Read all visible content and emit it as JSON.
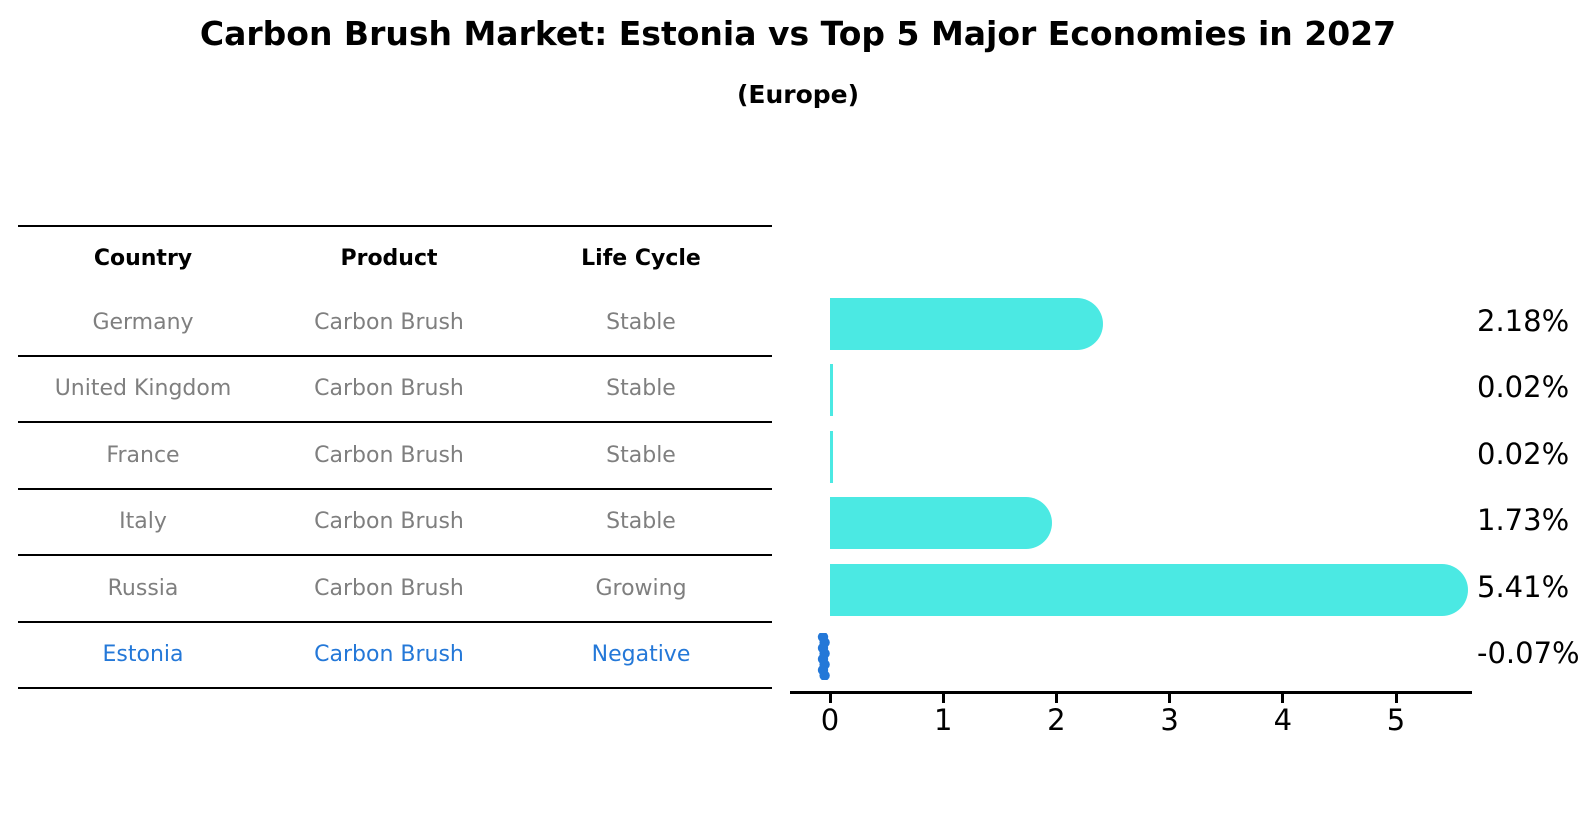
{
  "title": "Carbon Brush Market: Estonia vs Top 5 Major Economies in 2027",
  "subtitle": "(Europe)",
  "colors": {
    "bar": "#4BE9E3",
    "highlight": "#2478D8",
    "row_text": "#7f7f7f",
    "header_text": "#000000"
  },
  "table": {
    "headers": [
      "Country",
      "Product",
      "Life Cycle"
    ],
    "rows": [
      {
        "country": "Germany",
        "product": "Carbon Brush",
        "life_cycle": "Stable",
        "highlight": false
      },
      {
        "country": "United Kingdom",
        "product": "Carbon Brush",
        "life_cycle": "Stable",
        "highlight": false
      },
      {
        "country": "France",
        "product": "Carbon Brush",
        "life_cycle": "Stable",
        "highlight": false
      },
      {
        "country": "Italy",
        "product": "Carbon Brush",
        "life_cycle": "Stable",
        "highlight": false
      },
      {
        "country": "Russia",
        "product": "Carbon Brush",
        "life_cycle": "Growing",
        "highlight": false
      },
      {
        "country": "Estonia",
        "product": "Carbon Brush",
        "life_cycle": "Negative",
        "highlight": true
      }
    ]
  },
  "chart_data": {
    "type": "bar",
    "orientation": "horizontal",
    "title": "Carbon Brush Market: Estonia vs Top 5 Major Economies in 2027 (Europe)",
    "categories": [
      "Germany",
      "United Kingdom",
      "France",
      "Italy",
      "Russia",
      "Estonia"
    ],
    "values": [
      2.18,
      0.02,
      0.02,
      1.73,
      5.41,
      -0.07
    ],
    "value_labels": [
      "2.18%",
      "0.02%",
      "0.02%",
      "1.73%",
      "5.41%",
      "-0.07%"
    ],
    "xticks": [
      0,
      1,
      2,
      3,
      4,
      5
    ],
    "xlim": [
      -0.36,
      5.68
    ],
    "xlabel": "",
    "ylabel": "",
    "grid": false,
    "legend": "none",
    "bar_color": "#4BE9E3",
    "highlight_color": "#2478D8",
    "highlight_index": 5
  }
}
